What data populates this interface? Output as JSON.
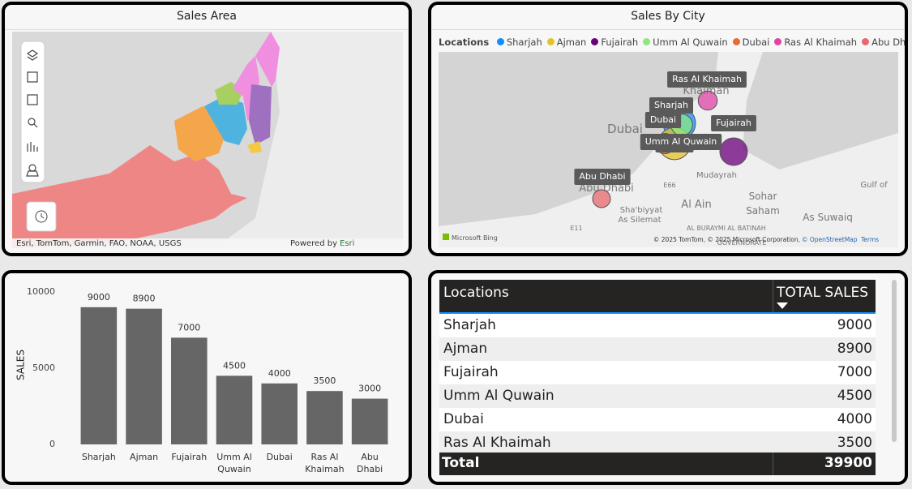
{
  "sales_area": {
    "title": "Sales Area",
    "attribution": "Esri, TomTom, Garmin, FAO, NOAA, USGS",
    "powered_by": "Powered by",
    "powered_by_brand": "Esri"
  },
  "sales_by_city": {
    "title": "Sales By City",
    "legend_title": "Locations",
    "legend": [
      {
        "name": "Sharjah",
        "color": "#118dff"
      },
      {
        "name": "Ajman",
        "color": "#e6c229"
      },
      {
        "name": "Fujairah",
        "color": "#6b007b"
      },
      {
        "name": "Umm Al Quwain",
        "color": "#8ee87a"
      },
      {
        "name": "Dubai",
        "color": "#e66c37"
      },
      {
        "name": "Ras Al Khaimah",
        "color": "#e044a7"
      },
      {
        "name": "Abu Dhabi",
        "color": "#e8686e"
      }
    ],
    "map_labels": [
      "Dubai",
      "Khaimah",
      "Abu Dhabi",
      "Al Ain",
      "Sohar",
      "Saham",
      "Mudayrah",
      "Gulf of",
      "E66",
      "E11",
      "Sha'biyyat",
      "As Silemat",
      "AL BURAYMI",
      "AL BATINAH",
      "GOVERNORATE",
      "As Suwaiq"
    ],
    "map_brand": "Microsoft Bing",
    "copyright": "© 2025 TomTom, © 2025 Microsoft Corporation,",
    "osm_link": "© OpenStreetMap",
    "terms": "Terms"
  },
  "chart_data": {
    "type": "bar",
    "y_label": "SALES",
    "categories": [
      "Sharjah",
      "Ajman",
      "Fujairah",
      "Umm Al Quwain",
      "Dubai",
      "Ras Al Khaimah",
      "Abu Dhabi"
    ],
    "values": [
      9000,
      8900,
      7000,
      4500,
      4000,
      3500,
      3000
    ],
    "color": "#666666",
    "ylim": [
      0,
      10000
    ],
    "yticks": [
      0,
      5000,
      10000
    ],
    "grid": false
  },
  "table": {
    "headers": [
      "Locations",
      "TOTAL SALES"
    ],
    "rows": [
      [
        "Sharjah",
        "9000"
      ],
      [
        "Ajman",
        "8900"
      ],
      [
        "Fujairah",
        "7000"
      ],
      [
        "Umm Al Quwain",
        "4500"
      ],
      [
        "Dubai",
        "4000"
      ],
      [
        "Ras Al Khaimah",
        "3500"
      ]
    ],
    "total": [
      "Total",
      "39900"
    ]
  }
}
